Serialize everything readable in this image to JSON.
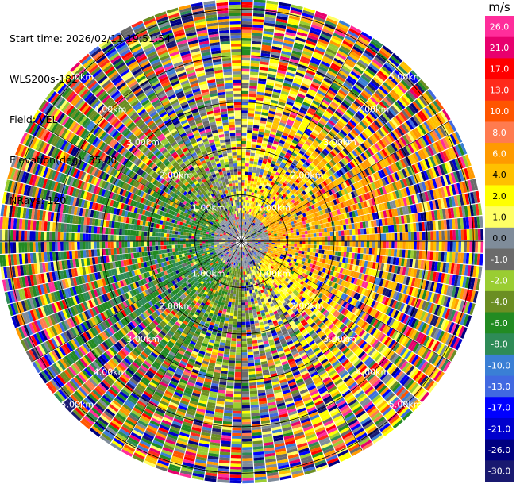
{
  "info": {
    "start_time": "Start time: 2026/02/11 19:51:54",
    "instrument": "WLS200s-181",
    "field": "Field: VEL",
    "elevation": "Elevation(deg): 35.00",
    "nrays": "NRays: 120"
  },
  "colorbar": {
    "unit": "m/s",
    "ticks": [
      "26.0",
      "21.0",
      "17.0",
      "13.0",
      "10.0",
      "8.0",
      "6.0",
      "4.0",
      "2.0",
      "1.0",
      "0.0",
      "-1.0",
      "-2.0",
      "-4.0",
      "-6.0",
      "-8.0",
      "-10.0",
      "-13.0",
      "-17.0",
      "-21.0",
      "-26.0",
      "-30.0"
    ],
    "colors": [
      "#ff2d9b",
      "#e8006e",
      "#ff0000",
      "#ff2a1a",
      "#ff5500",
      "#ff7b4f",
      "#ff9a00",
      "#ffc000",
      "#ffff00",
      "#ffff66",
      "#7f8c9a",
      "#6b6b6b",
      "#9acd32",
      "#6b8e23",
      "#228b22",
      "#2e8b57",
      "#3a7fd5",
      "#4169e1",
      "#0000ff",
      "#0000cd",
      "#000080",
      "#191970"
    ]
  },
  "chart_data": {
    "type": "ppi",
    "field": "VEL",
    "elevation_deg": 35.0,
    "nrays": 120,
    "range_rings_km": [
      1,
      2,
      3,
      4,
      5
    ],
    "ring_labels": [
      "1.00km",
      "2.00km",
      "3.00km",
      "4.00km",
      "5.00km"
    ],
    "max_range_km": 5.2,
    "pattern": "near-field positive (yellow/orange) velocities to the east/south-east, negative (green) velocities to the west/north-west, noisy multicolour outer ranges"
  }
}
